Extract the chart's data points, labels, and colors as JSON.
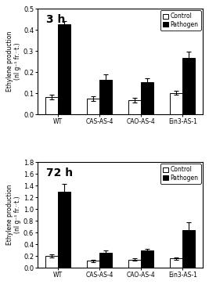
{
  "panel1": {
    "title": "3 h",
    "categories": [
      "WT",
      "CAS-AS-4",
      "CAO-AS-4",
      "Ein3-AS-1"
    ],
    "control_values": [
      0.083,
      0.075,
      0.068,
      0.102
    ],
    "pathogen_values": [
      0.425,
      0.163,
      0.152,
      0.267
    ],
    "control_errors": [
      0.012,
      0.012,
      0.01,
      0.008
    ],
    "pathogen_errors": [
      0.015,
      0.025,
      0.02,
      0.03
    ],
    "ylim": [
      0,
      0.5
    ],
    "yticks": [
      0.0,
      0.1,
      0.2,
      0.3,
      0.4,
      0.5
    ],
    "ylabel": "Ethylene production\n(nl g⁻¹ fr.·t.)"
  },
  "panel2": {
    "title": "72 h",
    "categories": [
      "WT",
      "CAS-AS-4",
      "CAO-AS-4",
      "Ein3-AS-1"
    ],
    "control_values": [
      0.2,
      0.12,
      0.14,
      0.16
    ],
    "pathogen_values": [
      1.3,
      0.26,
      0.29,
      0.64
    ],
    "control_errors": [
      0.025,
      0.018,
      0.02,
      0.02
    ],
    "pathogen_errors": [
      0.13,
      0.04,
      0.035,
      0.14
    ],
    "ylim": [
      0,
      1.8
    ],
    "yticks": [
      0.0,
      0.2,
      0.4,
      0.6,
      0.8,
      1.0,
      1.2,
      1.4,
      1.6,
      1.8
    ],
    "ylabel": "Ethylene production\n(nl g⁻¹ fr.·t.)"
  },
  "control_color": "white",
  "pathogen_color": "black",
  "control_edgecolor": "black",
  "pathogen_edgecolor": "black",
  "bar_width": 0.3,
  "legend_labels": [
    "Control",
    "Pathogen"
  ],
  "background_color": "white",
  "figure_background": "white"
}
